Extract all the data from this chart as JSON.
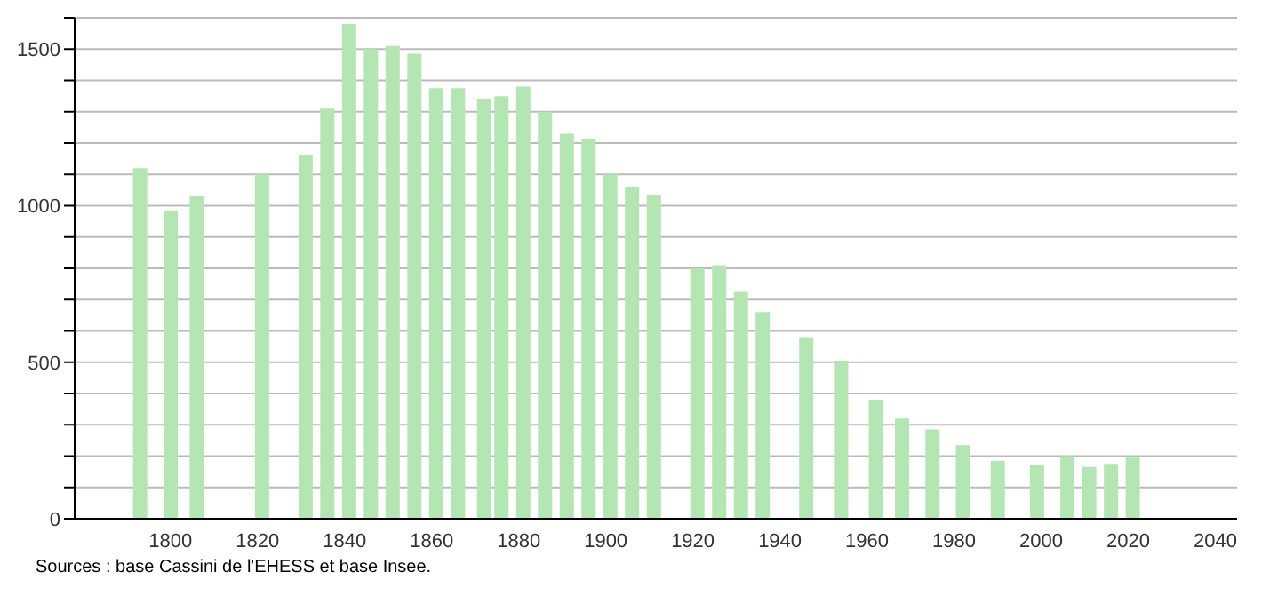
{
  "chart_data": {
    "type": "bar",
    "x": [
      1793,
      1800,
      1806,
      1821,
      1831,
      1836,
      1841,
      1846,
      1851,
      1856,
      1861,
      1866,
      1872,
      1876,
      1881,
      1886,
      1891,
      1896,
      1901,
      1906,
      1911,
      1921,
      1926,
      1931,
      1936,
      1946,
      1954,
      1962,
      1968,
      1975,
      1982,
      1990,
      1999,
      2006,
      2011,
      2016,
      2021
    ],
    "values": [
      1120,
      985,
      1030,
      1100,
      1160,
      1310,
      1580,
      1500,
      1510,
      1485,
      1375,
      1375,
      1340,
      1350,
      1380,
      1300,
      1230,
      1215,
      1100,
      1060,
      1035,
      800,
      810,
      725,
      660,
      580,
      505,
      380,
      320,
      285,
      235,
      185,
      170,
      200,
      165,
      175,
      195
    ],
    "color": "#b3e6b3",
    "xlim": [
      1778,
      2045
    ],
    "xticks": [
      1800,
      1820,
      1840,
      1860,
      1880,
      1900,
      1920,
      1940,
      1960,
      1980,
      2000,
      2020,
      2040
    ],
    "ylim": [
      0,
      1600
    ],
    "yticks": [
      0,
      {
        "value": 100,
        "label": null
      },
      {
        "value": 200,
        "label": null
      },
      {
        "value": 300,
        "label": null
      },
      {
        "value": 400,
        "label": null
      },
      500,
      {
        "value": 600,
        "label": null
      },
      {
        "value": 700,
        "label": null
      },
      {
        "value": 800,
        "label": null
      },
      {
        "value": 900,
        "label": null
      },
      1000,
      {
        "value": 1100,
        "label": null
      },
      {
        "value": 1200,
        "label": null
      },
      {
        "value": 1300,
        "label": null
      },
      {
        "value": 1400,
        "label": null
      },
      1500,
      {
        "value": 1600,
        "label": null
      }
    ],
    "grid": "y",
    "annotations": [
      "Sources : base Cassini de l'EHESS et base Insee."
    ]
  }
}
